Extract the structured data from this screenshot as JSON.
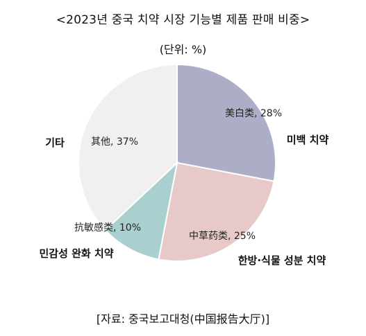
{
  "title": "<2023년 중국 치약 시장 기능별 제품 판매 비중>",
  "unit": "(단위: %)",
  "source": "[자료: 중국보고대청(中国报告大厅)]",
  "colors": {
    "whitening": "#abaec6",
    "herbal": "#e8c9c9",
    "sensitivity": "#a9d0cf",
    "other": "#f0f0f0",
    "separator": "#ffffff"
  },
  "chart_data": {
    "type": "pie",
    "start": "12 o'clock",
    "direction": "clockwise",
    "slices": [
      {
        "key": "whitening",
        "label": "美白类, 28%",
        "category": "미백 치약",
        "value": 28
      },
      {
        "key": "herbal",
        "label": "中草药类, 25%",
        "category": "한방·식물 성분 치약",
        "value": 25
      },
      {
        "key": "sensitivity",
        "label": "抗敏感类, 10%",
        "category": "민감성 완화 치약",
        "value": 10
      },
      {
        "key": "other",
        "label": "其他, 37%",
        "category": "기타",
        "value": 37
      }
    ]
  }
}
